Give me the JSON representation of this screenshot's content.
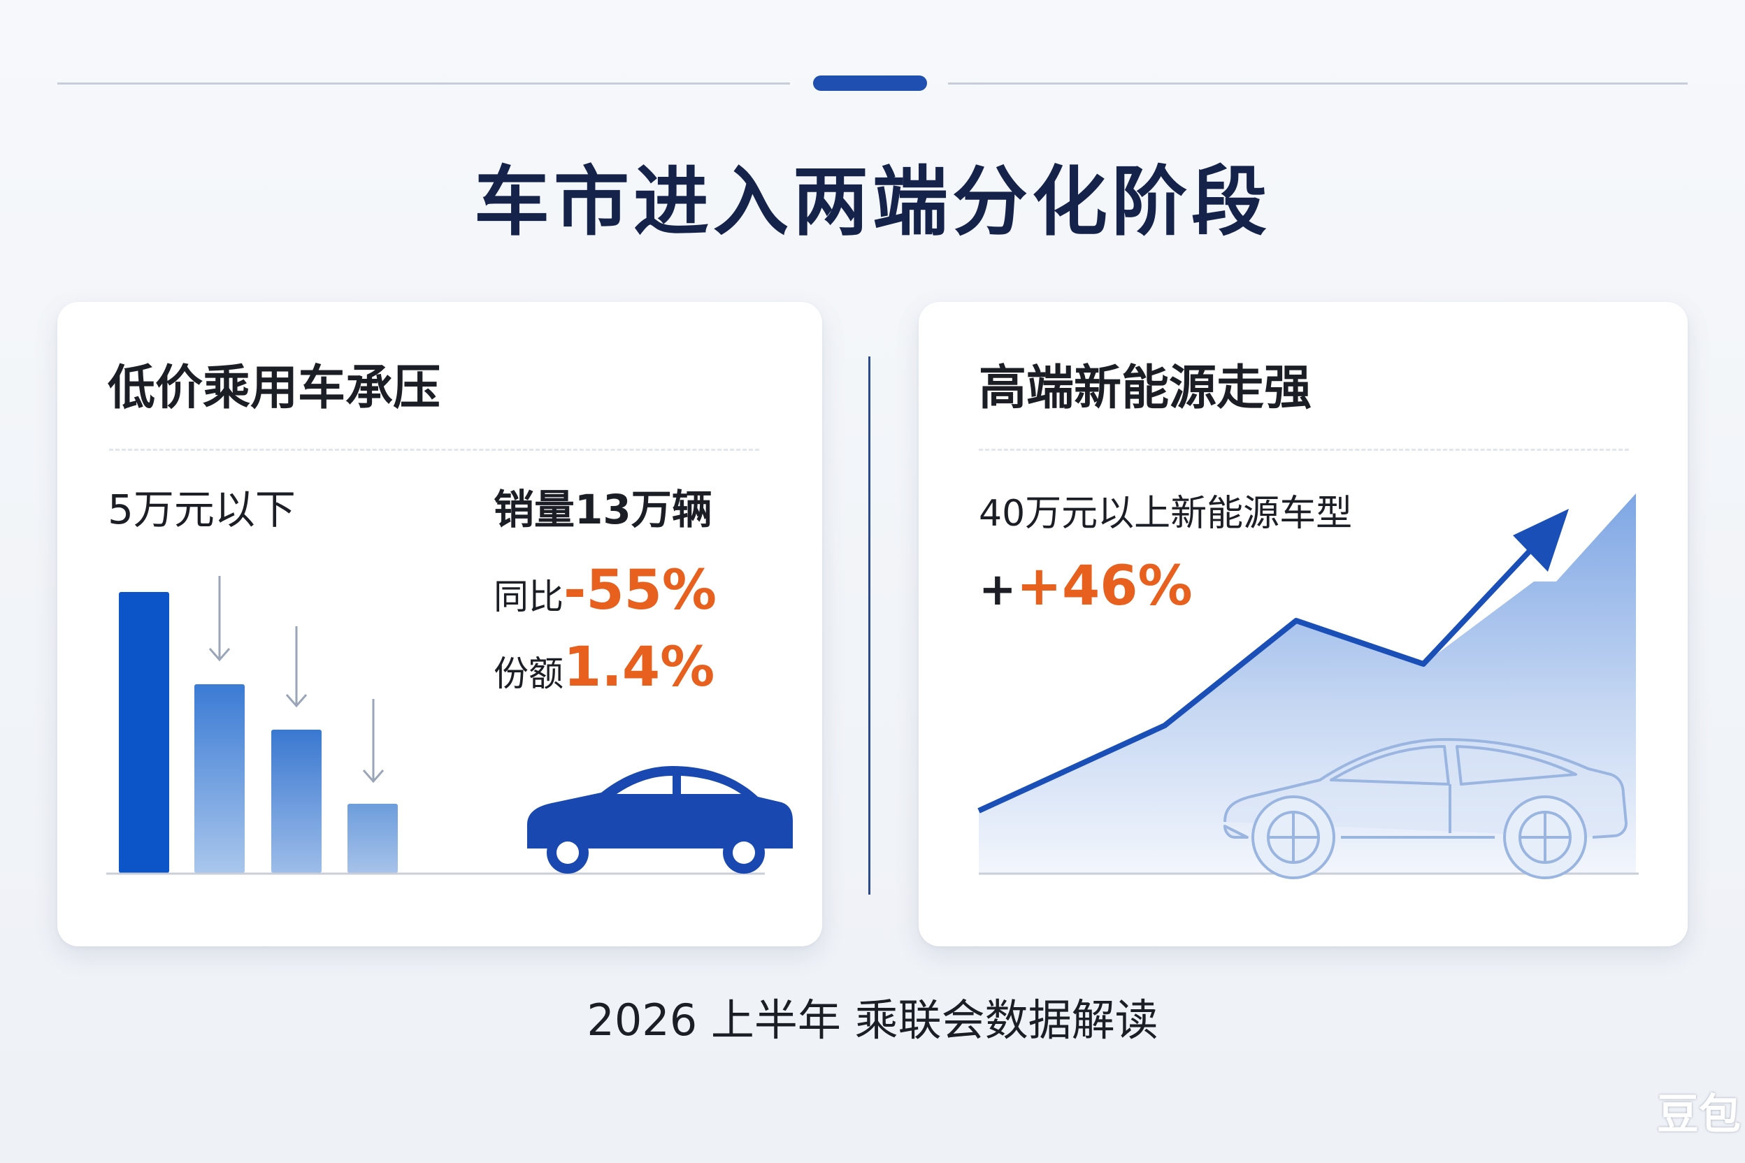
{
  "header": {
    "title": "车市进入两端分化阶段"
  },
  "left_card": {
    "title": "低价乘用车承压",
    "segment_label": "5万元以下",
    "sales_label": "销量13万辆",
    "yoy_prefix": "同比",
    "yoy_value": "-55%",
    "share_prefix": "份额",
    "share_value": "1.4%",
    "bar_colors": [
      "#0b55c8",
      "#3f80d6",
      "#3f7bd2",
      "#6f9fde"
    ]
  },
  "right_card": {
    "title": "高端新能源走强",
    "segment_label": "40万元以上新能源车型",
    "growth_prefix": "+",
    "growth_value": "+46%",
    "line_color": "#1a4fb8",
    "area_color": "#b9cff0"
  },
  "footer": {
    "text": "2026 上半年 乘联会数据解读"
  },
  "watermark": {
    "text": "豆包"
  },
  "colors": {
    "brand_navy": "#15224a",
    "accent_blue": "#1f4fb0",
    "highlight_orange": "#e8601e"
  }
}
